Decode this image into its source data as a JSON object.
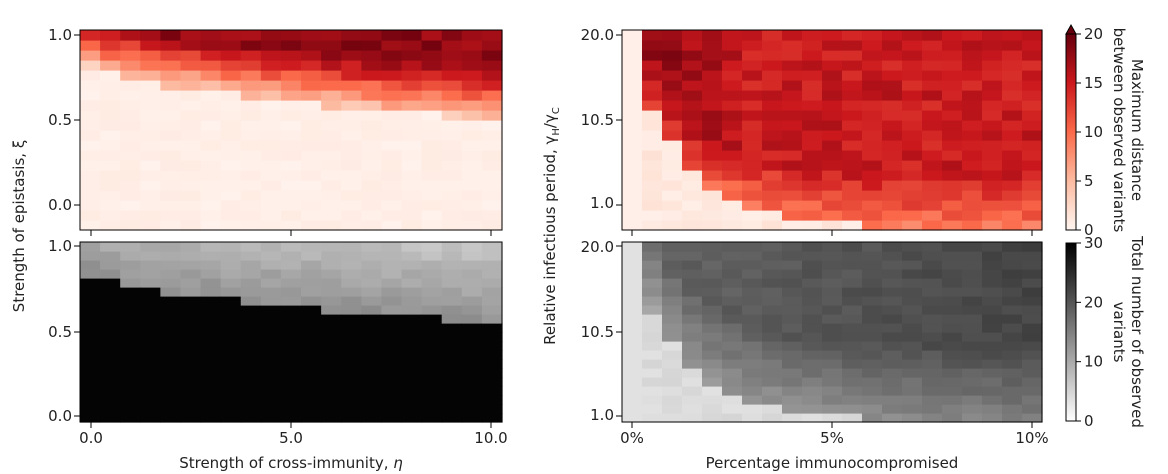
{
  "chart_data": [
    {
      "type": "heatmap",
      "panel": "top-left",
      "xlabel": "",
      "ylabel": "Strength of epistasis, ξ",
      "x_range": [
        0,
        10
      ],
      "y_range": [
        0,
        1
      ],
      "x_ticks": [],
      "y_ticks": [
        "0.0",
        "0.5",
        "1.0"
      ],
      "colormap": "reds",
      "value_range": [
        0,
        20
      ],
      "cols": 21,
      "rows": 20,
      "pattern": "Red values concentrated above a boundary curve that falls from ξ≈0.85 at η=0 to ξ≈0.55 at η=10; near zero below."
    },
    {
      "type": "heatmap",
      "panel": "top-right",
      "xlabel": "",
      "ylabel": "Relative infectious period, γH/γC",
      "x_range": [
        0,
        10
      ],
      "y_range": [
        1.0,
        20.0
      ],
      "x_ticks": [],
      "y_ticks": [
        "1.0",
        "10.5",
        "20.0"
      ],
      "colormap": "reds",
      "value_range": [
        0,
        20
      ],
      "cols": 21,
      "rows": 20,
      "pattern": "Near zero at 0% immunocompromised and at low relative infectious period; high values (up to ~18) above a boundary that falls from ~18 at 0.5% to ~3 at 10%."
    },
    {
      "type": "heatmap",
      "panel": "bottom-left",
      "xlabel": "Strength of cross-immunity, η",
      "ylabel": "",
      "x_range": [
        0,
        10
      ],
      "y_range": [
        0,
        1
      ],
      "x_ticks": [
        "0.0",
        "5.0",
        "10.0"
      ],
      "y_ticks": [
        "0.0",
        "0.5",
        "1.0"
      ],
      "colormap": "greys",
      "value_range": [
        0,
        30
      ],
      "cols": 21,
      "rows": 20,
      "pattern": "Black (≈30) below the boundary curve, grey (≈8–14) above it."
    },
    {
      "type": "heatmap",
      "panel": "bottom-right",
      "xlabel": "Percentage immunocompromised",
      "ylabel": "",
      "x_range": [
        0,
        10
      ],
      "y_range": [
        1.0,
        20.0
      ],
      "x_ticks": [
        "0%",
        "5%",
        "10%"
      ],
      "y_ticks": [
        "1.0",
        "10.5",
        "20.0"
      ],
      "colormap": "greys",
      "value_range": [
        0,
        30
      ],
      "cols": 21,
      "rows": 20,
      "pattern": "Light grey (≈3) at 0% and low periods; mid to dark grey (≈12–22) above the boundary, darker toward high percentages and long periods."
    }
  ],
  "shared_ylabel_left": "Strength of epistasis, ξ",
  "shared_ylabel_right": "Relative infectious period, γH/γC",
  "ylabel_left_text": "Strength of epistasis, ξ",
  "ylabel_right_main": "Relative infectious period, γ",
  "ylabel_right_sub1": "H",
  "ylabel_right_mid": "/γ",
  "ylabel_right_sub2": "C",
  "xlabel_left_main": "Strength of cross-immunity, ",
  "xlabel_left_sym": "η",
  "xlabel_right": "Percentage immunocompromised",
  "colorbar_top": {
    "label_line1": "Maximum distance",
    "label_line2": "between observed variants",
    "ticks": [
      "0",
      "5",
      "10",
      "15",
      "20"
    ],
    "tick_values": [
      0,
      5,
      10,
      15,
      20
    ],
    "range": [
      0,
      20
    ],
    "extend": "max",
    "color_low": "#fff5f0",
    "color_high": "#67000d"
  },
  "colorbar_bottom": {
    "label_line1": "Total number of observed",
    "label_line2": "variants",
    "ticks": [
      "0",
      "10",
      "20",
      "30"
    ],
    "tick_values": [
      0,
      10,
      20,
      30
    ],
    "range": [
      0,
      30
    ],
    "color_low": "#ffffff",
    "color_high": "#000000"
  },
  "ticks": {
    "left_y": [
      "1.0",
      "0.5",
      "0.0"
    ],
    "right_y": [
      "20.0",
      "10.5",
      "1.0"
    ],
    "left_x": [
      "0.0",
      "5.0",
      "10.0"
    ],
    "right_x": [
      "0%",
      "5%",
      "10%"
    ]
  }
}
